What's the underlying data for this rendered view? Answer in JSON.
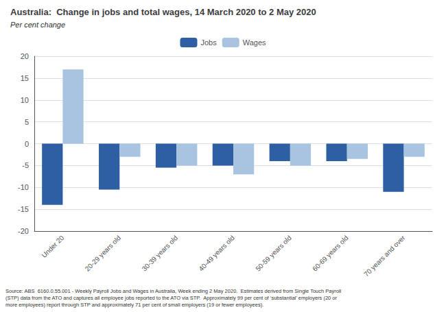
{
  "chart_data": {
    "type": "bar",
    "title": "Australia:  Change in jobs and total wages, 14 March 2020 to 2 May 2020",
    "subtitle": "Per cent change",
    "annotations": [
      "Source: ABS  6160.0.55.001 - Weekly Payroll Jobs and Wages in Australia, Week ending 2 May 2020.  Estimates derived from Single Touch Payroll\n(STP) data from the ATO and captures all employee jobs reported to the ATO via STP.  Approximately 99 per cent of ‘substantial’ employers (20 or\nmore employees) report through STP and approximately 71 per cent of small employers (19 or fewer employees)."
    ],
    "categories": [
      "Under 20",
      "20-29 years old",
      "30-39 years old",
      "40-49 years old",
      "50-59 years old",
      "60-69 years old",
      "70 years and over"
    ],
    "series": [
      {
        "name": "Jobs",
        "color": "#2E5FA3",
        "values": [
          -14.0,
          -10.5,
          -5.5,
          -5.0,
          -4.0,
          -4.0,
          -11.0
        ]
      },
      {
        "name": "Wages",
        "color": "#A8C4E0",
        "values": [
          17.0,
          -3.0,
          -5.0,
          -7.0,
          -5.0,
          -3.5,
          -3.0
        ]
      }
    ],
    "ylim": [
      -20,
      20
    ],
    "yticks": [
      -20,
      -15,
      -10,
      -5,
      0,
      5,
      10,
      15,
      20
    ],
    "grid": true,
    "legend": "upper center"
  }
}
